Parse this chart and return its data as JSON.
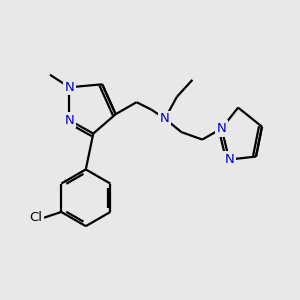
{
  "bg_color": "#e8e8e8",
  "bond_color": "#000000",
  "N_color": "#0000cc",
  "Cl_color": "#000000",
  "line_width": 1.6,
  "font_size": 9.5,
  "figsize": [
    3.0,
    3.0
  ],
  "dpi": 100,
  "xlim": [
    0,
    10
  ],
  "ylim": [
    0,
    10
  ]
}
